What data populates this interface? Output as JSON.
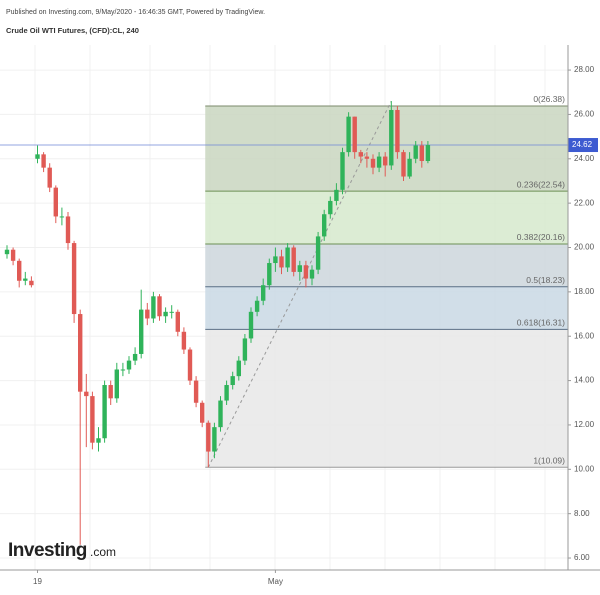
{
  "header": {
    "published": "Published on Investing.com, 9/May/2020 - 16:46:35 GMT, Powered by TradingView.",
    "instrument": "Crude Oil WTI Futures, (CFD):CL, 240",
    "logo": "Investing",
    "logo_suffix": ".com"
  },
  "chart_data": {
    "type": "candlestick",
    "categories": [
      null,
      null,
      null,
      null,
      null,
      "19",
      null,
      null,
      null,
      null,
      null,
      null,
      null,
      null,
      null,
      null,
      null,
      null,
      null,
      null,
      null,
      null,
      null,
      null,
      null,
      null,
      null,
      null,
      null,
      null,
      null,
      null,
      null,
      null,
      null,
      null,
      null,
      null,
      null,
      null,
      null,
      null,
      null,
      null,
      "May",
      null,
      null,
      null,
      null,
      null,
      null,
      null,
      null,
      null,
      null,
      null,
      null,
      null,
      null,
      null,
      null,
      null,
      null,
      null,
      null,
      null,
      null,
      null,
      null,
      null
    ],
    "open": [
      19.7,
      19.9,
      19.4,
      18.5,
      18.5,
      24.0,
      24.2,
      23.6,
      22.7,
      21.4,
      21.4,
      20.2,
      17.0,
      13.5,
      13.3,
      11.2,
      11.4,
      13.8,
      13.2,
      14.5,
      14.5,
      14.9,
      15.2,
      17.2,
      16.8,
      17.8,
      16.9,
      17.1,
      17.1,
      16.2,
      15.4,
      14.0,
      13.0,
      12.1,
      10.8,
      11.9,
      13.1,
      13.8,
      14.2,
      14.9,
      15.9,
      17.1,
      17.6,
      18.3,
      19.3,
      19.6,
      19.1,
      20.0,
      18.9,
      19.2,
      18.6,
      19.0,
      20.5,
      21.5,
      22.1,
      22.6,
      24.3,
      25.9,
      24.3,
      24.1,
      24.0,
      23.6,
      24.1,
      23.7,
      26.2,
      24.3,
      23.2,
      24.0,
      24.6,
      23.9
    ],
    "high": [
      20.1,
      20.0,
      19.5,
      18.9,
      18.7,
      24.6,
      24.3,
      23.8,
      22.8,
      21.8,
      21.6,
      20.3,
      17.2,
      14.3,
      13.5,
      11.9,
      14.0,
      14.0,
      14.8,
      14.8,
      15.1,
      15.5,
      18.1,
      17.5,
      18.0,
      17.9,
      17.3,
      17.4,
      17.2,
      16.4,
      15.5,
      14.2,
      13.1,
      12.2,
      12.1,
      13.3,
      14.0,
      14.4,
      15.1,
      16.1,
      17.3,
      17.8,
      18.6,
      19.5,
      20.0,
      19.9,
      20.2,
      20.1,
      19.4,
      19.4,
      19.2,
      20.7,
      21.7,
      22.3,
      22.9,
      24.5,
      26.1,
      25.9,
      24.4,
      24.3,
      24.2,
      24.3,
      24.3,
      26.6,
      26.38,
      24.4,
      24.3,
      24.8,
      24.8,
      24.8
    ],
    "low": [
      19.5,
      19.2,
      18.2,
      18.3,
      18.2,
      23.8,
      23.4,
      22.5,
      21.1,
      21.0,
      19.9,
      16.6,
      6.6,
      11.0,
      10.9,
      10.8,
      11.2,
      12.9,
      13.0,
      14.2,
      14.3,
      14.7,
      15.0,
      16.5,
      16.6,
      16.7,
      16.6,
      16.8,
      16.0,
      15.2,
      13.8,
      12.8,
      11.9,
      10.09,
      10.5,
      11.7,
      12.9,
      13.6,
      14.0,
      14.7,
      15.7,
      16.9,
      17.4,
      18.1,
      18.9,
      18.8,
      18.9,
      18.7,
      18.5,
      18.2,
      18.3,
      18.8,
      20.3,
      21.3,
      21.9,
      22.4,
      24.1,
      24.0,
      23.8,
      23.6,
      23.3,
      23.4,
      23.2,
      23.5,
      24.0,
      23.0,
      23.1,
      23.8,
      23.6,
      23.8
    ],
    "close": [
      19.9,
      19.4,
      18.5,
      18.6,
      18.3,
      24.2,
      23.6,
      22.7,
      21.4,
      21.4,
      20.2,
      17.0,
      13.5,
      13.3,
      11.2,
      11.4,
      13.8,
      13.2,
      14.5,
      14.5,
      14.9,
      15.2,
      17.2,
      16.8,
      17.8,
      16.9,
      17.1,
      17.1,
      16.2,
      15.4,
      14.0,
      13.0,
      12.1,
      10.8,
      11.9,
      13.1,
      13.8,
      14.2,
      14.9,
      15.9,
      17.1,
      17.6,
      18.3,
      19.3,
      19.6,
      19.1,
      20.0,
      18.9,
      19.2,
      18.6,
      19.0,
      20.5,
      21.5,
      22.1,
      22.6,
      24.3,
      25.9,
      24.3,
      24.1,
      24.0,
      23.6,
      24.1,
      23.7,
      26.2,
      24.3,
      23.2,
      24.0,
      24.6,
      23.9,
      24.62
    ],
    "up_color": "#2fb35a",
    "down_color": "#e05a55",
    "ylim": [
      5.46,
      29.13
    ],
    "yticks": [
      {
        "value": 6,
        "label": "6.00"
      },
      {
        "value": 8,
        "label": "8.00"
      },
      {
        "value": 10,
        "label": "10.00"
      },
      {
        "value": 12,
        "label": "12.00"
      },
      {
        "value": 14,
        "label": "14.00"
      },
      {
        "value": 16,
        "label": "16.00"
      },
      {
        "value": 18,
        "label": "18.00"
      },
      {
        "value": 20,
        "label": "20.00"
      },
      {
        "value": 22,
        "label": "22.00"
      },
      {
        "value": 24,
        "label": "24.00"
      },
      {
        "value": 26,
        "label": "26.00"
      },
      {
        "value": 28,
        "label": "28.00"
      }
    ],
    "grid": true,
    "last_price": 24.62,
    "fib_levels": [
      {
        "value": 26.38,
        "label": "0(26.38)"
      },
      {
        "value": 22.54,
        "label": "0.236(22.54)"
      },
      {
        "value": 20.16,
        "label": "0.382(20.16)"
      },
      {
        "value": 18.23,
        "label": "0.5(18.23)"
      },
      {
        "value": 16.31,
        "label": "0.618(16.31)"
      },
      {
        "value": 10.09,
        "label": "1(10.09)"
      }
    ]
  }
}
